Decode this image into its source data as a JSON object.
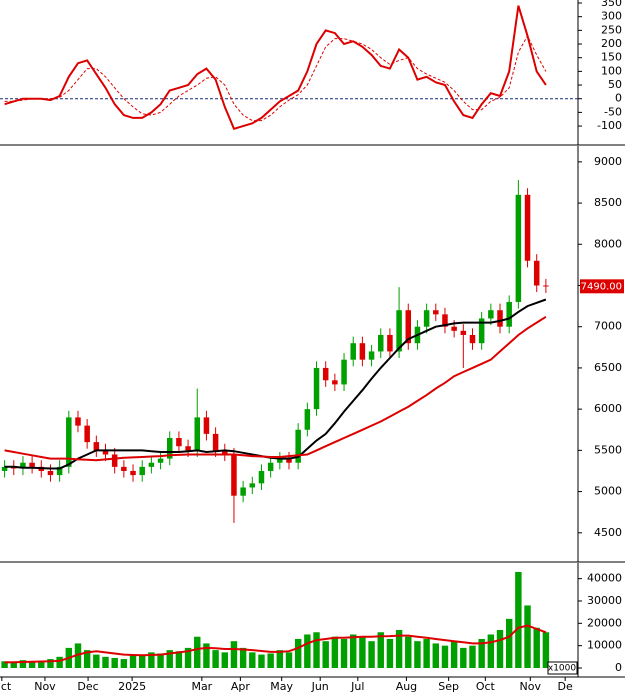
{
  "chart_data": [
    {
      "type": "line",
      "ylim": [
        -151,
        361
      ],
      "yticks": [
        -100,
        -50,
        0,
        50,
        100,
        150,
        200,
        250,
        300,
        350
      ],
      "xlim": [
        -0.5,
        62.5
      ],
      "x": [
        0,
        1,
        2,
        3,
        4,
        5,
        6,
        7,
        8,
        9,
        10,
        11,
        12,
        13,
        14,
        15,
        16,
        17,
        18,
        19,
        20,
        21,
        22,
        23,
        24,
        25,
        26,
        27,
        28,
        29,
        30,
        31,
        32,
        33,
        34,
        35,
        36,
        37,
        38,
        39,
        40,
        41,
        42,
        43,
        44,
        45,
        46,
        47,
        48,
        49,
        50,
        51,
        52,
        53,
        54,
        55,
        56,
        57,
        58,
        59
      ],
      "ref_line": 0,
      "series": [
        {
          "color": "#dd0000",
          "style": "solid",
          "values": [
            -20,
            -10,
            0,
            0,
            0,
            -5,
            10,
            80,
            130,
            140,
            90,
            40,
            -20,
            -60,
            -70,
            -70,
            -50,
            -20,
            30,
            40,
            50,
            90,
            110,
            70,
            -30,
            -110,
            -100,
            -90,
            -70,
            -40,
            -10,
            10,
            30,
            100,
            200,
            250,
            240,
            200,
            210,
            190,
            160,
            120,
            110,
            180,
            150,
            70,
            80,
            60,
            50,
            -10,
            -60,
            -70,
            -20,
            20,
            10,
            100,
            340,
            230,
            100,
            50
          ]
        },
        {
          "color": "#dd0000",
          "style": "dashed",
          "values": [
            -10,
            -10,
            -5,
            0,
            0,
            0,
            5,
            30,
            70,
            110,
            110,
            80,
            40,
            0,
            -30,
            -55,
            -60,
            -50,
            -20,
            10,
            30,
            50,
            75,
            80,
            50,
            -20,
            -60,
            -80,
            -80,
            -60,
            -30,
            -5,
            15,
            50,
            120,
            190,
            220,
            220,
            210,
            200,
            180,
            150,
            125,
            140,
            150,
            110,
            90,
            75,
            60,
            30,
            -10,
            -40,
            -40,
            -10,
            5,
            40,
            170,
            230,
            160,
            100
          ]
        }
      ]
    },
    {
      "type": "candlestick",
      "ylim": [
        4170,
        9180
      ],
      "yticks": [
        4500,
        5000,
        5500,
        6000,
        6500,
        7000,
        7500,
        8000,
        8500,
        9000
      ],
      "xlim": [
        -0.5,
        62.5
      ],
      "up_color": "#00a000",
      "down_color": "#dd0000",
      "x": [
        0,
        1,
        2,
        3,
        4,
        5,
        6,
        7,
        8,
        9,
        10,
        11,
        12,
        13,
        14,
        15,
        16,
        17,
        18,
        19,
        20,
        21,
        22,
        23,
        24,
        25,
        26,
        27,
        28,
        29,
        30,
        31,
        32,
        33,
        34,
        35,
        36,
        37,
        38,
        39,
        40,
        41,
        42,
        43,
        44,
        45,
        46,
        47,
        48,
        49,
        50,
        51,
        52,
        53,
        54,
        55,
        56,
        57,
        58,
        59
      ],
      "open": [
        5250,
        5300,
        5280,
        5350,
        5300,
        5250,
        5200,
        5300,
        5900,
        5800,
        5600,
        5500,
        5450,
        5300,
        5250,
        5200,
        5300,
        5350,
        5400,
        5650,
        5550,
        5500,
        5900,
        5700,
        5500,
        5450,
        4950,
        5050,
        5100,
        5250,
        5350,
        5400,
        5350,
        5750,
        6000,
        6500,
        6350,
        6300,
        6600,
        6800,
        6600,
        6700,
        6900,
        6700,
        7200,
        6800,
        7000,
        7200,
        7150,
        7000,
        6950,
        6900,
        6800,
        7100,
        7200,
        7000,
        7300,
        8600,
        7800,
        7500
      ],
      "high": [
        5380,
        5380,
        5430,
        5430,
        5380,
        5330,
        5380,
        5980,
        5980,
        5880,
        5680,
        5580,
        5530,
        5380,
        5330,
        5380,
        5430,
        5480,
        5730,
        5730,
        5630,
        6250,
        5980,
        5780,
        5580,
        5530,
        5130,
        5180,
        5330,
        5430,
        5480,
        5480,
        5830,
        6080,
        6580,
        6580,
        6430,
        6680,
        6880,
        6880,
        6780,
        6980,
        6980,
        7480,
        7280,
        7080,
        7280,
        7280,
        7230,
        7080,
        7030,
        6980,
        7180,
        7280,
        7280,
        7380,
        8780,
        8680,
        7880,
        7580
      ],
      "low": [
        5170,
        5200,
        5200,
        5220,
        5170,
        5120,
        5120,
        5220,
        5720,
        5520,
        5420,
        5370,
        5220,
        5170,
        5120,
        5120,
        5220,
        5270,
        5320,
        5470,
        5420,
        5420,
        5620,
        5420,
        5370,
        4620,
        4870,
        4970,
        5020,
        5170,
        5270,
        5270,
        5270,
        5670,
        5920,
        6270,
        6220,
        6220,
        6520,
        6520,
        6520,
        6620,
        6620,
        6620,
        6720,
        6720,
        6920,
        7070,
        6920,
        6870,
        6500,
        6720,
        6720,
        7020,
        6920,
        6920,
        7220,
        7720,
        7420,
        7410
      ],
      "close": [
        5300,
        5280,
        5350,
        5300,
        5250,
        5200,
        5300,
        5900,
        5800,
        5600,
        5500,
        5450,
        5300,
        5250,
        5200,
        5300,
        5350,
        5400,
        5650,
        5550,
        5500,
        5900,
        5700,
        5500,
        5450,
        4950,
        5050,
        5100,
        5250,
        5350,
        5400,
        5350,
        5750,
        6000,
        6500,
        6350,
        6300,
        6600,
        6800,
        6600,
        6700,
        6900,
        6700,
        7200,
        6800,
        7000,
        7200,
        7150,
        7000,
        6950,
        6900,
        6800,
        7100,
        7200,
        7000,
        7300,
        8600,
        7800,
        7500,
        7490
      ],
      "series": [
        {
          "color": "#000000",
          "values": [
            5300,
            5300,
            5290,
            5290,
            5285,
            5280,
            5280,
            5330,
            5400,
            5450,
            5500,
            5500,
            5500,
            5500,
            5500,
            5500,
            5490,
            5480,
            5480,
            5480,
            5490,
            5500,
            5480,
            5490,
            5500,
            5490,
            5470,
            5450,
            5430,
            5410,
            5400,
            5400,
            5420,
            5520,
            5620,
            5700,
            5830,
            5970,
            6100,
            6230,
            6370,
            6500,
            6620,
            6740,
            6850,
            6900,
            6950,
            7000,
            7020,
            7040,
            7050,
            7050,
            7050,
            7050,
            7070,
            7100,
            7180,
            7250,
            7290,
            7330
          ]
        },
        {
          "color": "#dd0000",
          "values": [
            5500,
            5480,
            5460,
            5440,
            5420,
            5400,
            5400,
            5400,
            5390,
            5385,
            5380,
            5390,
            5400,
            5410,
            5415,
            5420,
            5425,
            5430,
            5440,
            5445,
            5450,
            5450,
            5450,
            5450,
            5450,
            5450,
            5440,
            5430,
            5425,
            5420,
            5420,
            5430,
            5440,
            5450,
            5500,
            5550,
            5600,
            5650,
            5700,
            5750,
            5800,
            5850,
            5910,
            5970,
            6030,
            6100,
            6170,
            6250,
            6320,
            6400,
            6450,
            6500,
            6550,
            6600,
            6700,
            6800,
            6900,
            6980,
            7050,
            7120
          ]
        }
      ],
      "last_label": {
        "value": 7490,
        "label": "7490.00"
      }
    },
    {
      "type": "bar",
      "ylim": [
        0,
        47000
      ],
      "yticks": [
        0,
        10000,
        20000,
        30000,
        40000
      ],
      "xlim": [
        -0.5,
        62.5
      ],
      "color": "#00a000",
      "unit_label": "x1000",
      "x": [
        0,
        1,
        2,
        3,
        4,
        5,
        6,
        7,
        8,
        9,
        10,
        11,
        12,
        13,
        14,
        15,
        16,
        17,
        18,
        19,
        20,
        21,
        22,
        23,
        24,
        25,
        26,
        27,
        28,
        29,
        30,
        31,
        32,
        33,
        34,
        35,
        36,
        37,
        38,
        39,
        40,
        41,
        42,
        43,
        44,
        45,
        46,
        47,
        48,
        49,
        50,
        51,
        52,
        53,
        54,
        55,
        56,
        57,
        58,
        59
      ],
      "values": [
        3000,
        2500,
        3500,
        2800,
        3000,
        4000,
        5000,
        9000,
        11000,
        8000,
        6000,
        5000,
        4500,
        4000,
        6000,
        5500,
        7000,
        6500,
        8000,
        7500,
        9000,
        14000,
        11000,
        8000,
        7000,
        12000,
        9000,
        7000,
        6000,
        6500,
        8000,
        7000,
        13000,
        15000,
        16000,
        12000,
        14000,
        13000,
        15000,
        14000,
        12000,
        16000,
        13000,
        17000,
        14000,
        12000,
        13000,
        11000,
        10000,
        12000,
        9000,
        10000,
        13000,
        15000,
        17000,
        22000,
        43000,
        28000,
        18000,
        16000
      ],
      "series": [
        {
          "color": "#dd0000",
          "values": [
            2500,
            2600,
            2700,
            2800,
            2900,
            3000,
            3200,
            4500,
            6000,
            7000,
            7500,
            7000,
            6500,
            6000,
            5800,
            5700,
            5800,
            6000,
            6500,
            7000,
            7500,
            8500,
            9000,
            8800,
            8500,
            8500,
            8300,
            8000,
            7600,
            7200,
            7200,
            7500,
            9000,
            11000,
            12500,
            13000,
            13500,
            13500,
            13800,
            14000,
            14000,
            14200,
            14300,
            14500,
            14500,
            14000,
            13500,
            13000,
            12500,
            12000,
            11500,
            11000,
            11000,
            11500,
            12500,
            14000,
            18000,
            19000,
            17500,
            16000
          ]
        }
      ],
      "xticks": [
        {
          "value": -0.3,
          "label": "ct"
        },
        {
          "value": 4.4,
          "label": "Nov"
        },
        {
          "value": 9.1,
          "label": "Dec"
        },
        {
          "value": 13.9,
          "label": "2025"
        },
        {
          "value": 21.5,
          "label": "Mar"
        },
        {
          "value": 25.7,
          "label": "Apr"
        },
        {
          "value": 30.2,
          "label": "May"
        },
        {
          "value": 34.4,
          "label": "Jun"
        },
        {
          "value": 38.5,
          "label": "Jul"
        },
        {
          "value": 43.8,
          "label": "Aug"
        },
        {
          "value": 48.4,
          "label": "Sep"
        },
        {
          "value": 52.4,
          "label": "Oct"
        },
        {
          "value": 57.3,
          "label": "Nov"
        },
        {
          "value": 61.1,
          "label": "De"
        }
      ]
    }
  ]
}
